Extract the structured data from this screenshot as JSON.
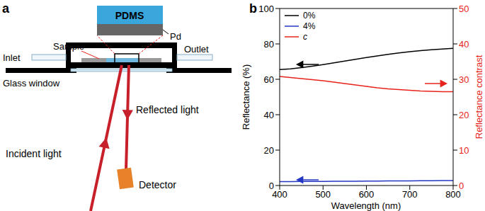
{
  "diagram": {
    "panel_label": "a",
    "labels": {
      "pdms": "PDMS",
      "pd": "Pd",
      "sample": "Sample",
      "inlet": "Inlet",
      "outlet": "Outlet",
      "glass_window": "Glass window",
      "incident": "Incident light",
      "reflected": "Reflected light",
      "detector": "Detector"
    }
  },
  "chart_data": {
    "type": "line",
    "title": "b",
    "x_label": "Wavelength (nm)",
    "y_label": "Reflectance (%)",
    "y2_label": "Reflectance contrast",
    "x": [
      400,
      425,
      450,
      475,
      500,
      525,
      550,
      575,
      600,
      625,
      650,
      675,
      700,
      725,
      750,
      775,
      800
    ],
    "xlim": [
      400,
      800
    ],
    "xticks": [
      400,
      500,
      600,
      700,
      800
    ],
    "ylim": [
      0,
      100
    ],
    "yticks": [
      0,
      20,
      40,
      60,
      80,
      100
    ],
    "y2lim": [
      0,
      50
    ],
    "y2ticks": [
      0,
      10,
      20,
      30,
      40,
      50
    ],
    "legend": "upper left",
    "series": [
      {
        "name": "0%",
        "color": "#000000",
        "values": [
          65.5,
          65.9,
          66.6,
          67.4,
          68.3,
          69.3,
          70.3,
          71.3,
          72.3,
          73.2,
          74.1,
          74.9,
          75.6,
          76.2,
          76.7,
          77.1,
          77.5
        ]
      },
      {
        "name": "4%",
        "color": "#2437c4",
        "values": [
          2.2,
          2.2,
          2.3,
          2.3,
          2.3,
          2.4,
          2.4,
          2.4,
          2.5,
          2.5,
          2.6,
          2.6,
          2.6,
          2.7,
          2.7,
          2.8,
          2.8
        ]
      },
      {
        "name": "c",
        "color": "#e8231b",
        "axis": "y2",
        "values": [
          30.8,
          30.5,
          30.2,
          29.9,
          29.6,
          29.2,
          28.8,
          28.4,
          28.0,
          27.6,
          27.3,
          27.1,
          26.9,
          26.7,
          26.6,
          26.5,
          26.5
        ]
      }
    ]
  }
}
